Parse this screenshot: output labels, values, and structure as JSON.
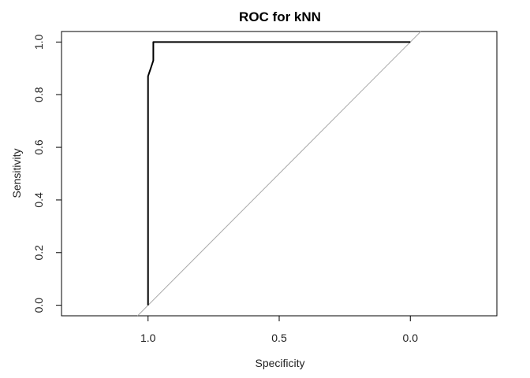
{
  "chart_data": {
    "type": "line",
    "title": "ROC for kNN",
    "xlabel": "Specificity",
    "ylabel": "Sensitivity",
    "x_reversed": true,
    "xlim": [
      1.33,
      -0.33
    ],
    "ylim": [
      -0.04,
      1.04
    ],
    "xticks": [
      1.0,
      0.5,
      0.0
    ],
    "xtick_labels": [
      "1.0",
      "0.5",
      "0.0"
    ],
    "yticks": [
      0.0,
      0.2,
      0.4,
      0.6,
      0.8,
      1.0
    ],
    "ytick_labels": [
      "0.0",
      "0.2",
      "0.4",
      "0.6",
      "0.8",
      "1.0"
    ],
    "grid": false,
    "series": [
      {
        "color": "#000000",
        "x": [
          1.0,
          1.0,
          0.99,
          0.98,
          0.98,
          0.0
        ],
        "y": [
          0.0,
          0.87,
          0.9,
          0.93,
          1.0,
          1.0
        ]
      }
    ],
    "reference_line": {
      "color": "#aaaaaa",
      "x": [
        1.04,
        -0.04
      ],
      "y": [
        -0.04,
        1.04
      ]
    }
  }
}
